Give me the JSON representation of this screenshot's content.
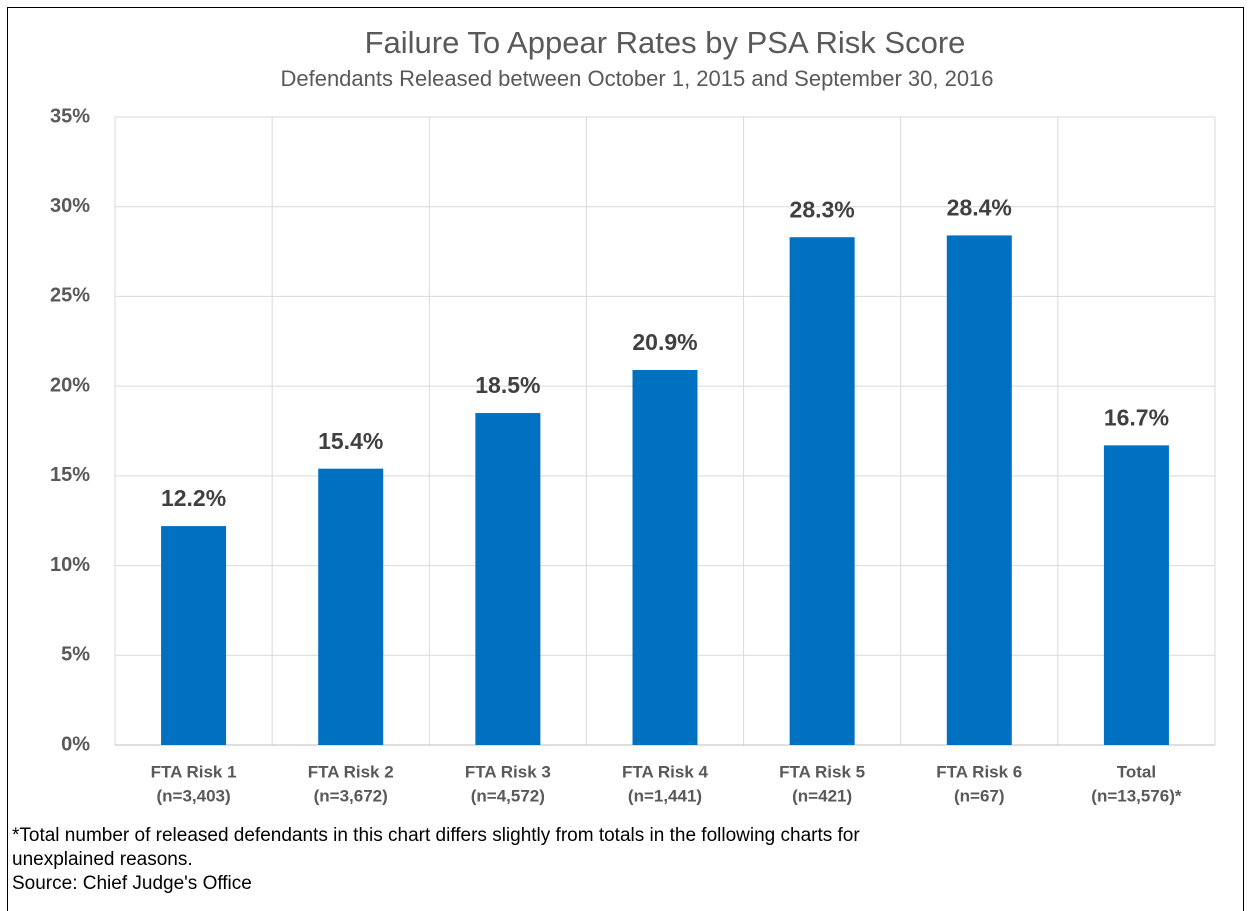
{
  "chart_data": {
    "type": "bar",
    "title": "Failure To Appear Rates by PSA Risk Score",
    "subtitle": "Defendants Released between October 1, 2015 and September 30, 2016",
    "categories": [
      [
        "FTA Risk 1",
        "(n=3,403)"
      ],
      [
        "FTA Risk 2",
        "(n=3,672)"
      ],
      [
        "FTA Risk 3",
        "(n=4,572)"
      ],
      [
        "FTA Risk 4",
        "(n=1,441)"
      ],
      [
        "FTA Risk 5",
        "(n=421)"
      ],
      [
        "FTA Risk 6",
        "(n=67)"
      ],
      [
        "Total",
        "(n=13,576)*"
      ]
    ],
    "values": [
      12.2,
      15.4,
      18.5,
      20.9,
      28.3,
      28.4,
      16.7
    ],
    "value_labels": [
      "12.2%",
      "15.4%",
      "18.5%",
      "20.9%",
      "28.3%",
      "28.4%",
      "16.7%"
    ],
    "color": "#0070c0",
    "ylim": [
      0,
      35
    ],
    "yticks": [
      {
        "value": 0,
        "label": "0%"
      },
      {
        "value": 5,
        "label": "5%"
      },
      {
        "value": 10,
        "label": "10%"
      },
      {
        "value": 15,
        "label": "15%"
      },
      {
        "value": 20,
        "label": "20%"
      },
      {
        "value": 25,
        "label": "25%"
      },
      {
        "value": 30,
        "label": "30%"
      },
      {
        "value": 35,
        "label": "35%"
      }
    ],
    "grid": true,
    "notes": [
      "*Total number of released defendants in this chart differs slightly from totals in the following charts for",
      "unexplained reasons.",
      "Source: Chief Judge's Office"
    ]
  }
}
